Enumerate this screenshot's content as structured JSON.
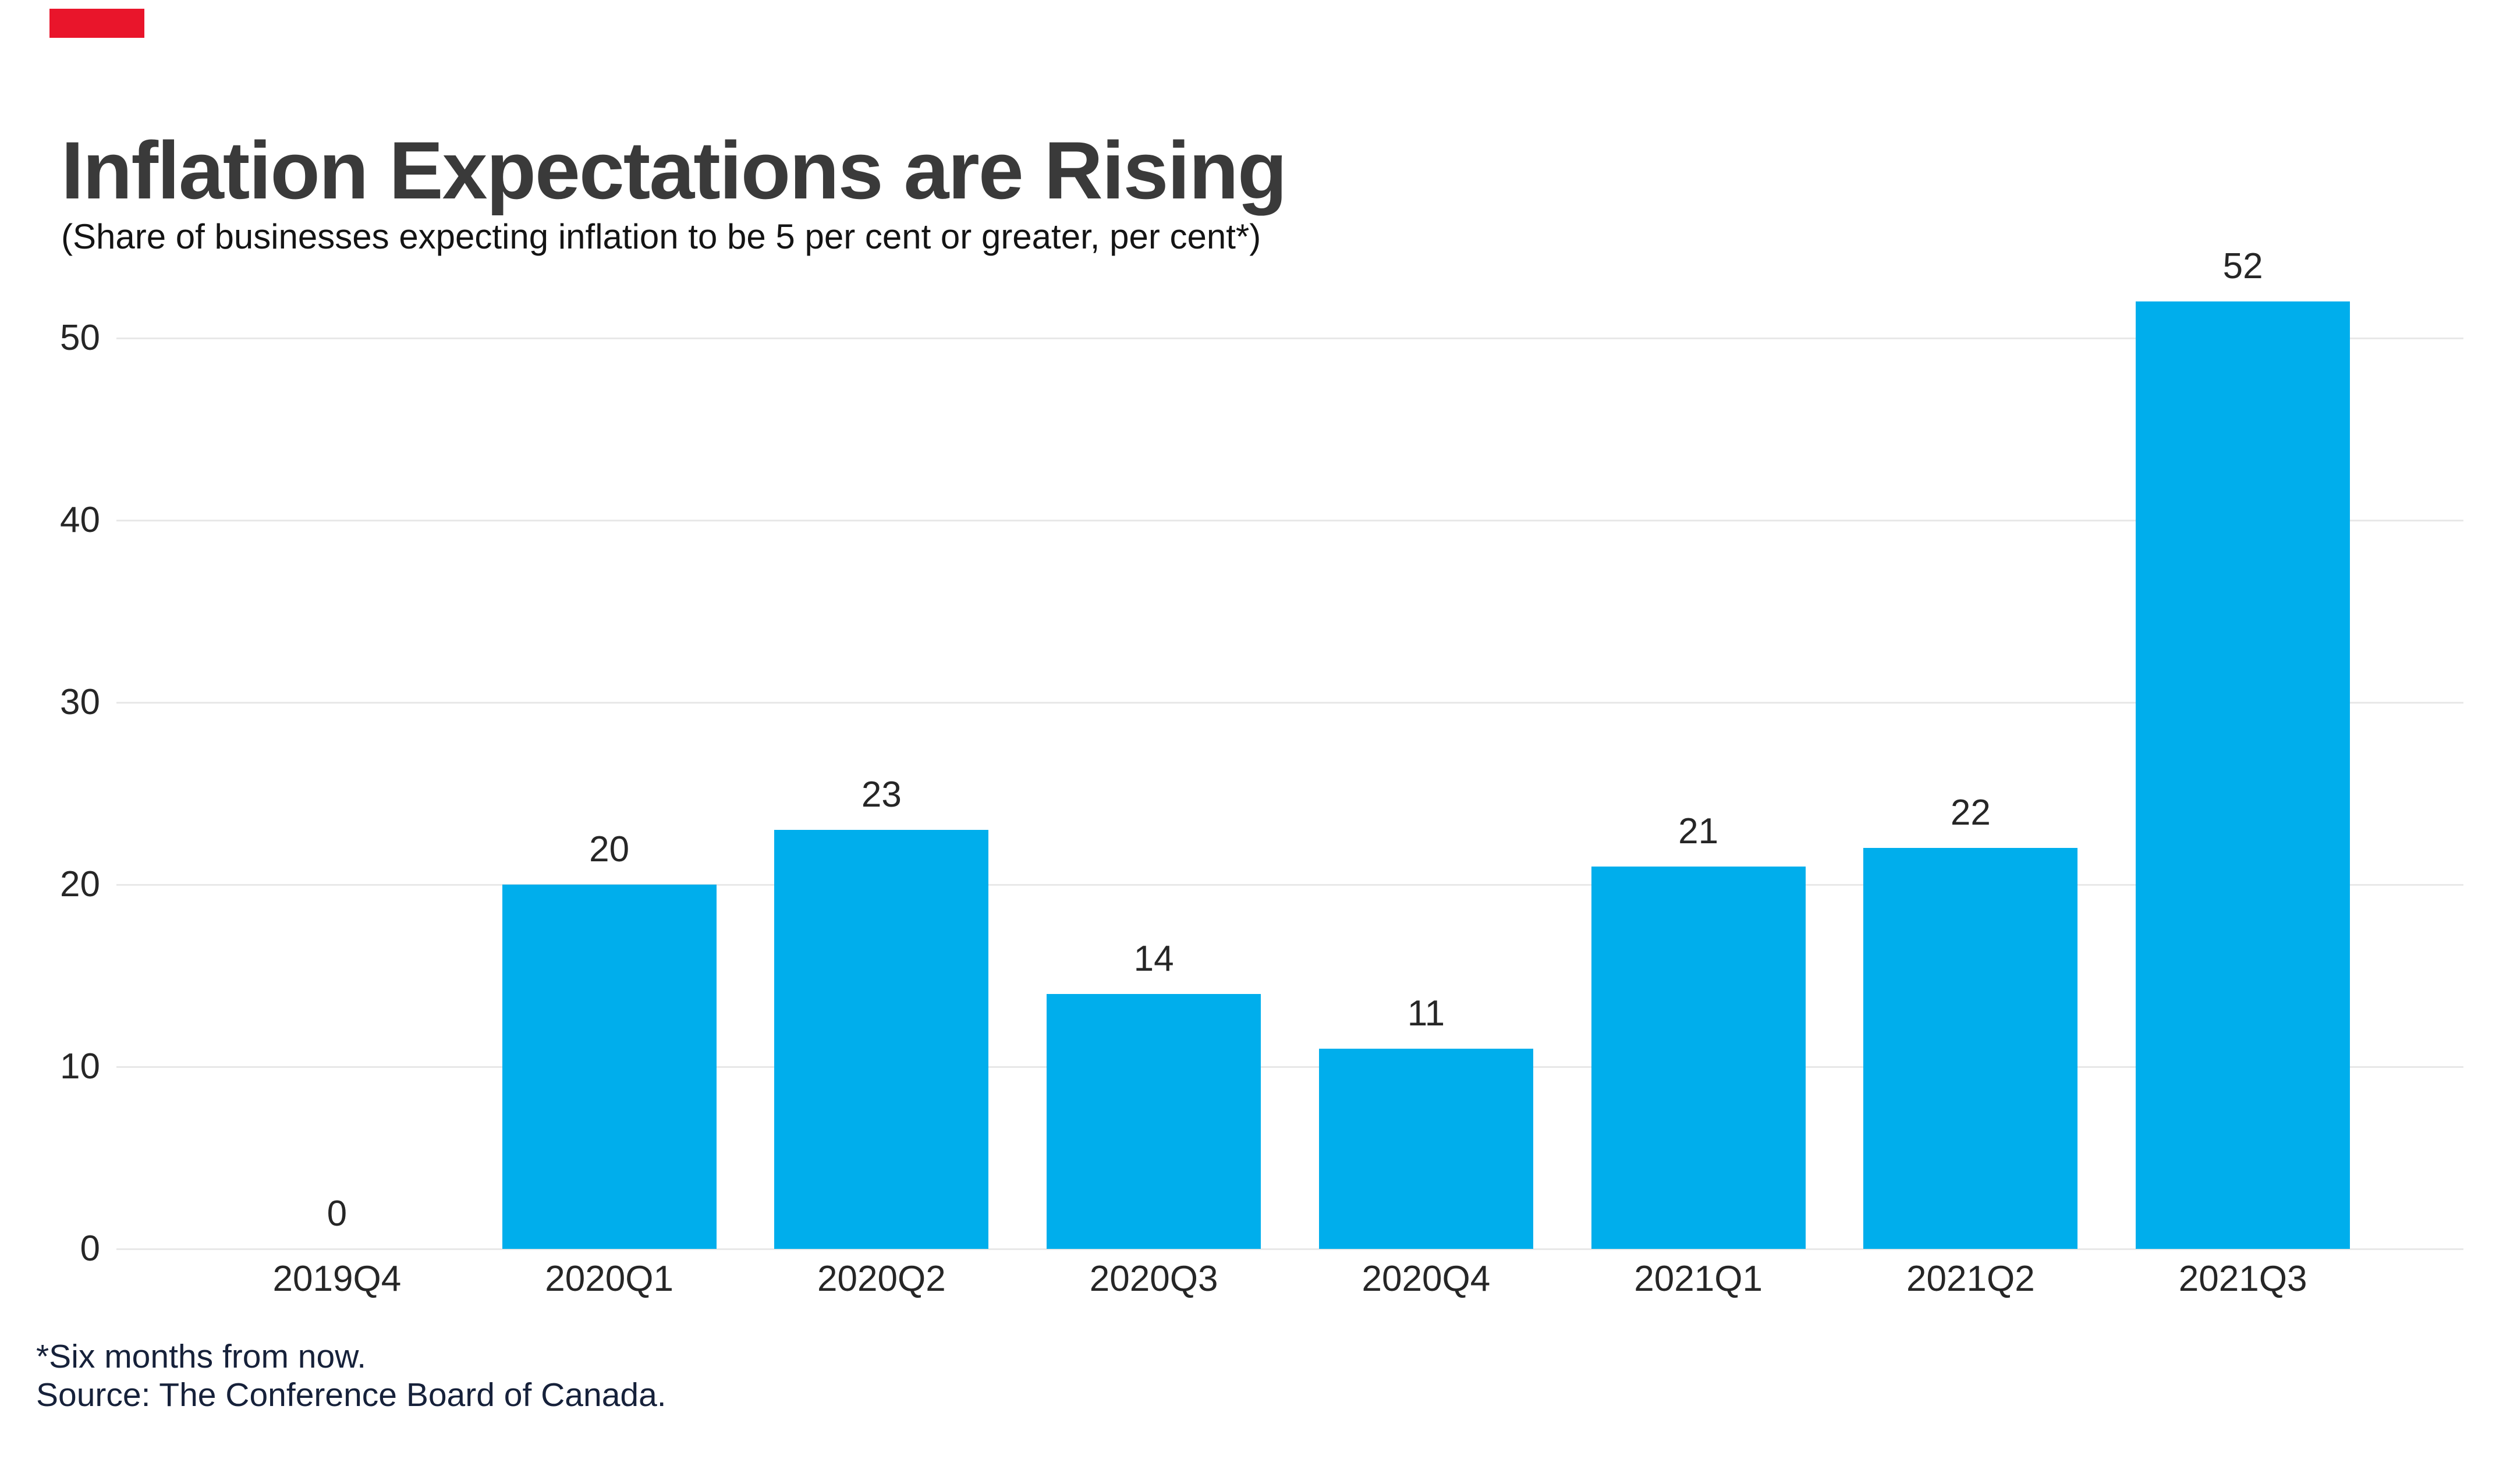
{
  "chart_data": {
    "type": "bar",
    "title": "Inflation Expectations are Rising",
    "subtitle": "(Share of businesses expecting inflation to be 5 per cent or greater, per cent*)",
    "categories": [
      "2019Q4",
      "2020Q1",
      "2020Q2",
      "2020Q3",
      "2020Q4",
      "2021Q1",
      "2021Q2",
      "2021Q3"
    ],
    "values": [
      0,
      20,
      23,
      14,
      11,
      21,
      22,
      52
    ],
    "value_labels": [
      "0",
      "20",
      "23",
      "14",
      "11",
      "21",
      "22",
      "52"
    ],
    "xlabel": "",
    "ylabel": "",
    "ylim": [
      0,
      52
    ],
    "yticks": [
      0,
      10,
      20,
      30,
      40,
      50
    ],
    "ytick_labels": [
      "0",
      "10",
      "20",
      "30",
      "40",
      "50"
    ],
    "grid": "horizontal",
    "legend": "none",
    "data_labels_position": "above-bars"
  },
  "footnotes": {
    "note": "*Six months from now.",
    "source": "Source: The Conference Board of Canada."
  },
  "colors": {
    "background": "#ffffff",
    "bar": "#00aeec",
    "gridline": "#e8e8e8",
    "axis_line": "#e8e8e8",
    "title_text": "#3a3a3a",
    "subtitle_text": "#141414",
    "tick_label_text": "#262626",
    "value_label_text": "#262626",
    "footnote_text": "#16213a",
    "brand_mark": "#e9152b"
  }
}
